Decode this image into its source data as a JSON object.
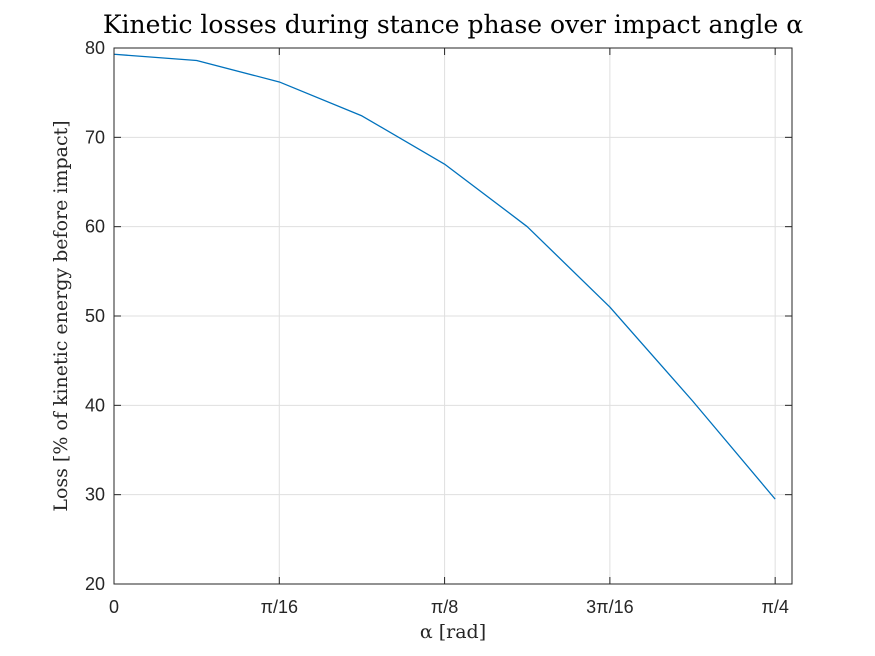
{
  "chart_data": {
    "type": "line",
    "title": "Kinetic losses during stance phase over impact angle α",
    "xlabel": "α [rad]",
    "ylabel": "Loss [% of kinetic energy before impact]",
    "xlim": [
      0,
      0.8054
    ],
    "ylim": [
      20,
      80
    ],
    "grid": true,
    "x_ticks": [
      {
        "value": 0,
        "label": "0"
      },
      {
        "value": 0.19635,
        "label": "π/16"
      },
      {
        "value": 0.3927,
        "label": "π/8"
      },
      {
        "value": 0.58905,
        "label": "3π/16"
      },
      {
        "value": 0.7854,
        "label": "π/4"
      }
    ],
    "y_ticks": [
      {
        "value": 20,
        "label": "20"
      },
      {
        "value": 30,
        "label": "30"
      },
      {
        "value": 40,
        "label": "40"
      },
      {
        "value": 50,
        "label": "50"
      },
      {
        "value": 60,
        "label": "60"
      },
      {
        "value": 70,
        "label": "70"
      },
      {
        "value": 80,
        "label": "80"
      }
    ],
    "series": [
      {
        "color": "#0072bd",
        "x": [
          0,
          0.0982,
          0.19635,
          0.2945,
          0.3927,
          0.4909,
          0.58905,
          0.6872,
          0.7854
        ],
        "y": [
          79.3,
          78.6,
          76.2,
          72.4,
          67.0,
          60.0,
          51.0,
          40.5,
          29.5
        ]
      }
    ]
  }
}
